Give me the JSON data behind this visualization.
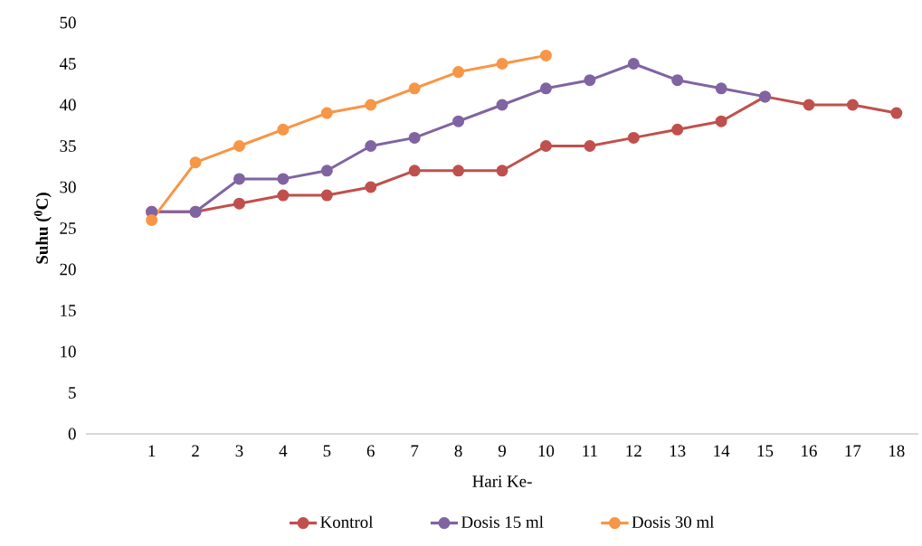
{
  "chart_data": {
    "type": "line",
    "xlabel": "Hari Ke-",
    "ylabel": "**Suhu ($^{0}$C)**",
    "categories": [
      null,
      "1",
      "2",
      "3",
      "4",
      "5",
      "6",
      "7",
      "8",
      "9",
      "10",
      "11",
      "12",
      "13",
      "14",
      "15",
      "16",
      "17",
      "18"
    ],
    "ylim": [
      0,
      50
    ],
    "yticks": [
      0,
      5,
      10,
      15,
      20,
      25,
      30,
      35,
      40,
      45,
      50
    ],
    "grid": false,
    "legend": "bottom",
    "marker": "circle",
    "line_style": "solid",
    "series": [
      {
        "name": "Kontrol",
        "color": "#c0504d",
        "values": [
          null,
          27,
          27,
          28,
          29,
          29,
          30,
          32,
          32,
          32,
          35,
          35,
          36,
          37,
          38,
          41,
          40,
          40,
          39
        ]
      },
      {
        "name": "Dosis 15 ml",
        "color": "#8064a2",
        "values": [
          null,
          27,
          27,
          31,
          31,
          32,
          35,
          36,
          38,
          40,
          42,
          43,
          45,
          43,
          42,
          41,
          null,
          null,
          null
        ]
      },
      {
        "name": "Dosis 30 ml",
        "color": "#f79646",
        "values": [
          null,
          26,
          33,
          35,
          37,
          39,
          40,
          42,
          44,
          45,
          46,
          null,
          null,
          null,
          null,
          null,
          null,
          null,
          null
        ]
      }
    ]
  }
}
